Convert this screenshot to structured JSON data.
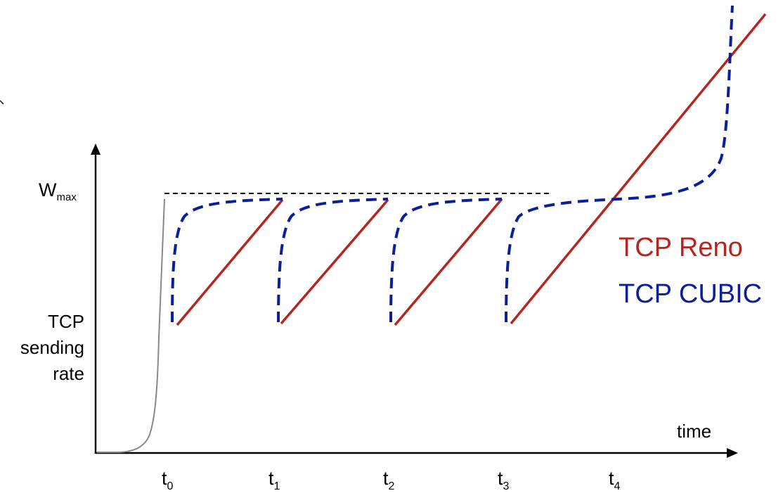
{
  "axes": {
    "y_label_lines": [
      "TCP",
      "sending",
      "rate"
    ],
    "y_tick_main": "W",
    "y_tick_sub": "max",
    "x_label": "time",
    "x_ticks": [
      {
        "main": "t",
        "sub": "0"
      },
      {
        "main": "t",
        "sub": "1"
      },
      {
        "main": "t",
        "sub": "2"
      },
      {
        "main": "t",
        "sub": "3"
      },
      {
        "main": "t",
        "sub": "4"
      }
    ]
  },
  "legend": [
    {
      "label": "TCP Reno",
      "color": "#b5261e"
    },
    {
      "label": "TCP CUBIC",
      "color": "#0b1e9b"
    }
  ],
  "colors": {
    "axis": "#000000",
    "slow_start": "#888888",
    "wmax_line": "#000000"
  }
}
